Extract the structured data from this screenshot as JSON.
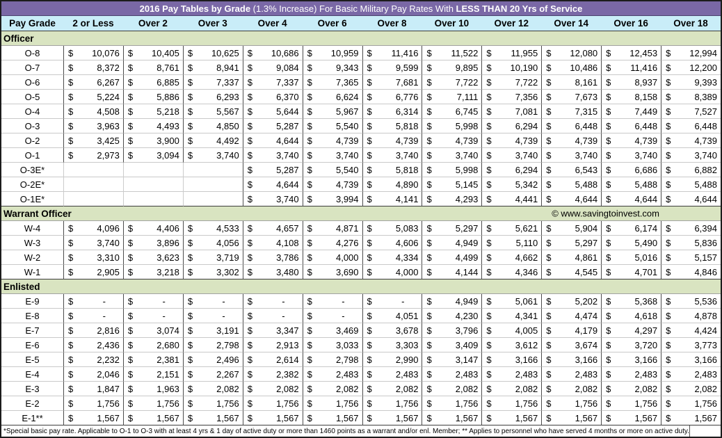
{
  "title": {
    "part1_bold": "2016 Pay Tables by Grade",
    "part2_normal": " (1.3% Increase) For Basic Military Pay Rates With ",
    "part3_bold": "LESS THAN 20 Yrs of Service"
  },
  "currency_symbol": "$",
  "columns": [
    "Pay Grade",
    "2 or Less",
    "Over 2",
    "Over 3",
    "Over 4",
    "Over 6",
    "Over 8",
    "Over 10",
    "Over 12",
    "Over 14",
    "Over 16",
    "Over 18"
  ],
  "sections": [
    {
      "label": "Officer",
      "watermark": "",
      "rows": [
        {
          "grade": "O-8",
          "values": [
            "10,076",
            "10,405",
            "10,625",
            "10,686",
            "10,959",
            "11,416",
            "11,522",
            "11,955",
            "12,080",
            "12,453",
            "12,994"
          ]
        },
        {
          "grade": "O-7",
          "values": [
            "8,372",
            "8,761",
            "8,941",
            "9,084",
            "9,343",
            "9,599",
            "9,895",
            "10,190",
            "10,486",
            "11,416",
            "12,200"
          ]
        },
        {
          "grade": "O-6",
          "values": [
            "6,267",
            "6,885",
            "7,337",
            "7,337",
            "7,365",
            "7,681",
            "7,722",
            "7,722",
            "8,161",
            "8,937",
            "9,393"
          ]
        },
        {
          "grade": "O-5",
          "values": [
            "5,224",
            "5,886",
            "6,293",
            "6,370",
            "6,624",
            "6,776",
            "7,111",
            "7,356",
            "7,673",
            "8,158",
            "8,389"
          ]
        },
        {
          "grade": "O-4",
          "values": [
            "4,508",
            "5,218",
            "5,567",
            "5,644",
            "5,967",
            "6,314",
            "6,745",
            "7,081",
            "7,315",
            "7,449",
            "7,527"
          ]
        },
        {
          "grade": "O-3",
          "values": [
            "3,963",
            "4,493",
            "4,850",
            "5,287",
            "5,540",
            "5,818",
            "5,998",
            "6,294",
            "6,448",
            "6,448",
            "6,448"
          ]
        },
        {
          "grade": "O-2",
          "values": [
            "3,425",
            "3,900",
            "4,492",
            "4,644",
            "4,739",
            "4,739",
            "4,739",
            "4,739",
            "4,739",
            "4,739",
            "4,739"
          ]
        },
        {
          "grade": "O-1",
          "values": [
            "2,973",
            "3,094",
            "3,740",
            "3,740",
            "3,740",
            "3,740",
            "3,740",
            "3,740",
            "3,740",
            "3,740",
            "3,740"
          ]
        },
        {
          "grade": "O-3E*",
          "values": [
            "",
            "",
            "",
            "5,287",
            "5,540",
            "5,818",
            "5,998",
            "6,294",
            "6,543",
            "6,686",
            "6,882"
          ]
        },
        {
          "grade": "O-2E*",
          "values": [
            "",
            "",
            "",
            "4,644",
            "4,739",
            "4,890",
            "5,145",
            "5,342",
            "5,488",
            "5,488",
            "5,488"
          ]
        },
        {
          "grade": "O-1E*",
          "values": [
            "",
            "",
            "",
            "3,740",
            "3,994",
            "4,141",
            "4,293",
            "4,441",
            "4,644",
            "4,644",
            "4,644"
          ]
        }
      ]
    },
    {
      "label": "Warrant Officer",
      "watermark": "© www.savingtoinvest.com",
      "rows": [
        {
          "grade": "W-4",
          "values": [
            "4,096",
            "4,406",
            "4,533",
            "4,657",
            "4,871",
            "5,083",
            "5,297",
            "5,621",
            "5,904",
            "6,174",
            "6,394"
          ]
        },
        {
          "grade": "W-3",
          "values": [
            "3,740",
            "3,896",
            "4,056",
            "4,108",
            "4,276",
            "4,606",
            "4,949",
            "5,110",
            "5,297",
            "5,490",
            "5,836"
          ]
        },
        {
          "grade": "W-2",
          "values": [
            "3,310",
            "3,623",
            "3,719",
            "3,786",
            "4,000",
            "4,334",
            "4,499",
            "4,662",
            "4,861",
            "5,016",
            "5,157"
          ]
        },
        {
          "grade": "W-1",
          "values": [
            "2,905",
            "3,218",
            "3,302",
            "3,480",
            "3,690",
            "4,000",
            "4,144",
            "4,346",
            "4,545",
            "4,701",
            "4,846"
          ]
        }
      ]
    },
    {
      "label": "Enlisted",
      "watermark": "",
      "rows": [
        {
          "grade": "E-9",
          "values": [
            "-",
            "-",
            "-",
            "-",
            "-",
            "-",
            "4,949",
            "5,061",
            "5,202",
            "5,368",
            "5,536"
          ]
        },
        {
          "grade": "E-8",
          "values": [
            "-",
            "-",
            "-",
            "-",
            "-",
            "4,051",
            "4,230",
            "4,341",
            "4,474",
            "4,618",
            "4,878"
          ]
        },
        {
          "grade": "E-7",
          "values": [
            "2,816",
            "3,074",
            "3,191",
            "3,347",
            "3,469",
            "3,678",
            "3,796",
            "4,005",
            "4,179",
            "4,297",
            "4,424"
          ]
        },
        {
          "grade": "E-6",
          "values": [
            "2,436",
            "2,680",
            "2,798",
            "2,913",
            "3,033",
            "3,303",
            "3,409",
            "3,612",
            "3,674",
            "3,720",
            "3,773"
          ]
        },
        {
          "grade": "E-5",
          "values": [
            "2,232",
            "2,381",
            "2,496",
            "2,614",
            "2,798",
            "2,990",
            "3,147",
            "3,166",
            "3,166",
            "3,166",
            "3,166"
          ]
        },
        {
          "grade": "E-4",
          "values": [
            "2,046",
            "2,151",
            "2,267",
            "2,382",
            "2,483",
            "2,483",
            "2,483",
            "2,483",
            "2,483",
            "2,483",
            "2,483"
          ]
        },
        {
          "grade": "E-3",
          "values": [
            "1,847",
            "1,963",
            "2,082",
            "2,082",
            "2,082",
            "2,082",
            "2,082",
            "2,082",
            "2,082",
            "2,082",
            "2,082"
          ]
        },
        {
          "grade": "E-2",
          "values": [
            "1,756",
            "1,756",
            "1,756",
            "1,756",
            "1,756",
            "1,756",
            "1,756",
            "1,756",
            "1,756",
            "1,756",
            "1,756"
          ]
        },
        {
          "grade": "E-1**",
          "values": [
            "1,567",
            "1,567",
            "1,567",
            "1,567",
            "1,567",
            "1,567",
            "1,567",
            "1,567",
            "1,567",
            "1,567",
            "1,567"
          ]
        }
      ]
    }
  ],
  "footnote": "*Special basic pay rate. Applicable to O-1 to O-3 with at least 4 yrs & 1 day of active duty or more than 1460 points as a warrant and/or enl. Member; ** Applies to personnel who have served 4 months or more on active duty.",
  "colors": {
    "title_bg": "#7a68a6",
    "title_text": "#ffffff",
    "header_bg": "#c9edf8",
    "section_bg": "#d9e4c1",
    "grid_vertical": "#4c4c4c",
    "grid_horizontal": "#c9c9c9"
  }
}
